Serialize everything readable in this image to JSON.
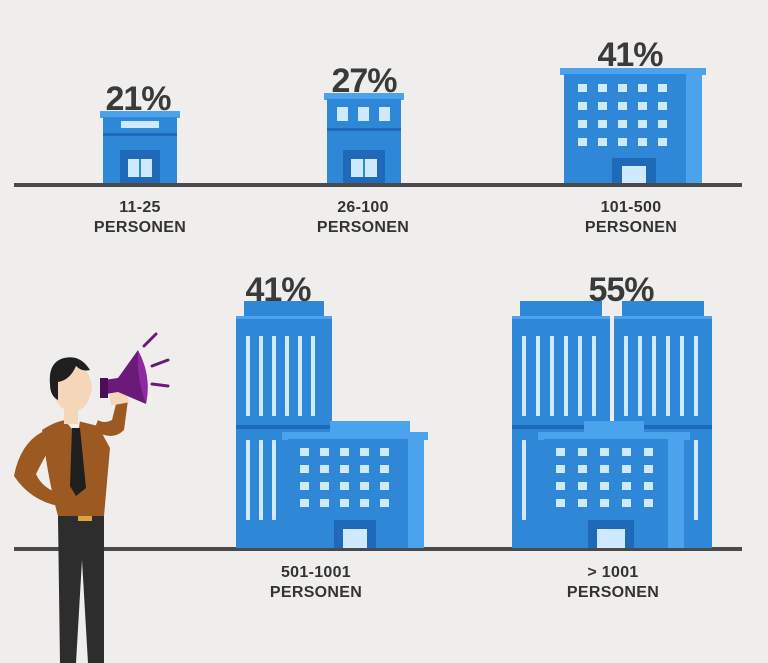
{
  "colors": {
    "background": "#efeeed",
    "building": "#2f87d8",
    "building_dark": "#1e6ab8",
    "building_light": "#4aa3ec",
    "window": "#cfeaff",
    "ground": "#4a4a4a",
    "text": "#3a3a3a"
  },
  "chart_data": {
    "type": "bar",
    "style": "pictogram-buildings",
    "categories": [
      "11-25 PERSONEN",
      "26-100 PERSONEN",
      "101-500 PERSONEN",
      "501-1001 PERSONEN",
      "> 1001 PERSONEN"
    ],
    "values": [
      21,
      27,
      41,
      41,
      55
    ],
    "value_labels": [
      "21%",
      "27%",
      "41%",
      "41%",
      "55%"
    ],
    "category_labels": [
      {
        "line1": "11-25",
        "line2": "PERSONEN"
      },
      {
        "line1": "26-100",
        "line2": "PERSONEN"
      },
      {
        "line1": "101-500",
        "line2": "PERSONEN"
      },
      {
        "line1": "501-1001",
        "line2": "PERSONEN"
      },
      {
        "line1": "> 1001",
        "line2": "PERSONEN"
      }
    ]
  },
  "illustration": {
    "figure": "man-with-megaphone-icon"
  }
}
